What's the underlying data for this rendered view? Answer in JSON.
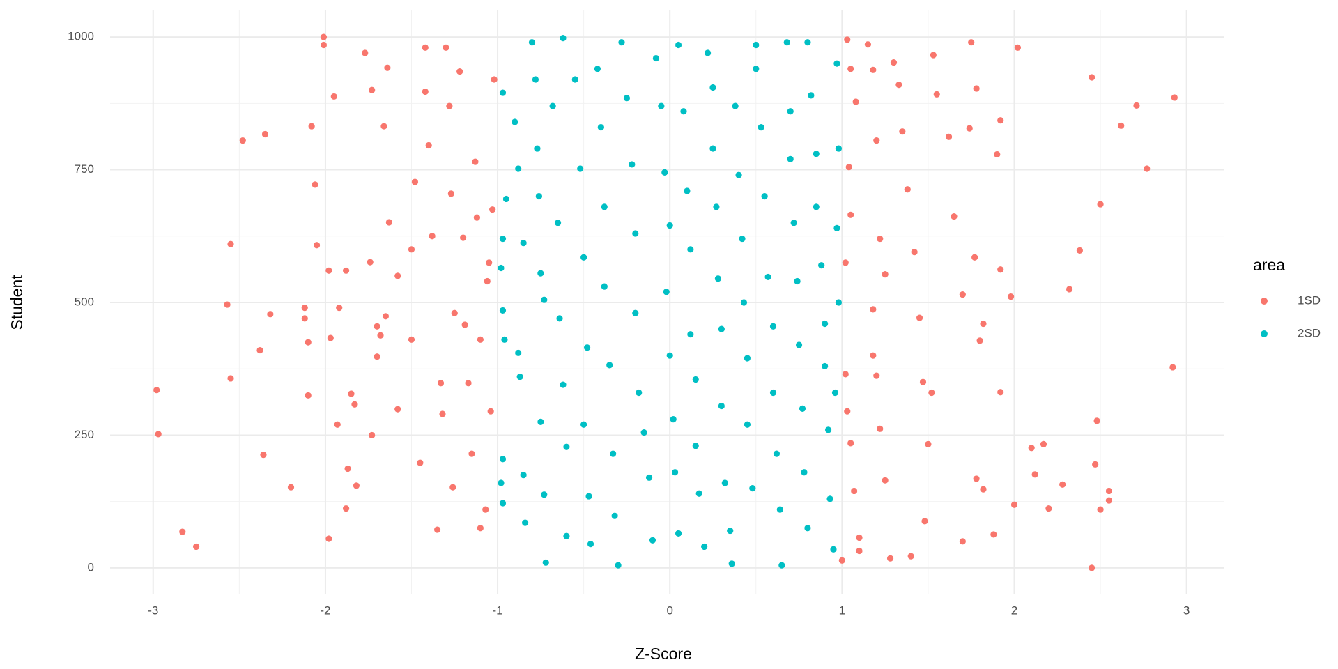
{
  "chart_data": {
    "type": "scatter",
    "x_label": "Z-Score",
    "y_label": "Student",
    "legend_title": "area",
    "legend_position": "right",
    "grid": true,
    "xlim": [
      -3.25,
      3.22
    ],
    "ylim": [
      -50,
      1050
    ],
    "xticks": [
      -3,
      -2,
      -1,
      0,
      1,
      2,
      3
    ],
    "yticks": [
      0,
      250,
      500,
      750,
      1000
    ],
    "series": [
      {
        "name": "1SD",
        "color": "#F8766D",
        "x": [
          -2.98,
          -2.97,
          -2.83,
          -2.75,
          -2.55,
          -2.57,
          -2.55,
          -2.48,
          -2.38,
          -2.36,
          -2.35,
          -2.32,
          -2.2,
          -2.12,
          -2.12,
          -2.1,
          -2.1,
          -2.08,
          -2.05,
          -2.06,
          -2.01,
          -2.01,
          -1.98,
          -1.98,
          -1.97,
          -1.95,
          -1.93,
          -1.92,
          -1.88,
          -1.87,
          -1.88,
          -1.85,
          -1.83,
          -1.82,
          -1.77,
          -1.73,
          -1.74,
          -1.73,
          -1.7,
          -1.7,
          -1.68,
          -1.66,
          -1.65,
          -1.64,
          -1.63,
          -1.58,
          -1.58,
          -1.5,
          -1.5,
          -1.48,
          -1.45,
          -1.42,
          -1.42,
          -1.4,
          -1.38,
          -1.35,
          -1.33,
          -1.32,
          -1.3,
          -1.28,
          -1.27,
          -1.26,
          -1.25,
          -1.22,
          -1.2,
          -1.19,
          -1.17,
          -1.15,
          -1.13,
          -1.12,
          -1.1,
          -1.1,
          -1.06,
          -1.05,
          -1.03,
          -1.02,
          -1.04,
          -1.07,
          1.03,
          1.05,
          1.08,
          1.04,
          1.05,
          1.02,
          1.02,
          1.03,
          1.05,
          1.07,
          1.1,
          1.1,
          1.0,
          1.15,
          1.18,
          1.2,
          1.22,
          1.25,
          1.18,
          1.18,
          1.2,
          1.22,
          1.25,
          1.28,
          1.3,
          1.33,
          1.35,
          1.38,
          1.42,
          1.45,
          1.47,
          1.5,
          1.48,
          1.52,
          1.53,
          1.55,
          1.62,
          1.65,
          1.7,
          1.74,
          1.75,
          1.78,
          1.8,
          1.82,
          1.77,
          1.78,
          1.82,
          1.88,
          1.9,
          1.92,
          1.92,
          1.92,
          1.98,
          2.0,
          2.02,
          2.1,
          2.12,
          2.17,
          2.2,
          2.28,
          2.32,
          2.38,
          2.45,
          2.47,
          2.48,
          2.5,
          2.5,
          2.55,
          2.55,
          2.62,
          2.71,
          2.77,
          2.93,
          2.92,
          2.45,
          1.7,
          1.4
        ],
        "values": [
          335,
          252,
          68,
          40,
          610,
          496,
          357,
          805,
          410,
          213,
          817,
          478,
          152,
          490,
          470,
          425,
          325,
          832,
          608,
          722,
          1000,
          985,
          560,
          55,
          433,
          888,
          270,
          490,
          112,
          187,
          560,
          328,
          308,
          155,
          970,
          900,
          576,
          250,
          455,
          398,
          438,
          832,
          474,
          942,
          651,
          550,
          299,
          600,
          430,
          727,
          198,
          980,
          897,
          796,
          625,
          72,
          348,
          290,
          980,
          870,
          705,
          152,
          480,
          935,
          622,
          458,
          348,
          215,
          765,
          660,
          430,
          75,
          540,
          575,
          675,
          920,
          295,
          110,
          995,
          940,
          878,
          755,
          665,
          575,
          365,
          295,
          235,
          145,
          57,
          32,
          14,
          986,
          938,
          805,
          620,
          553,
          487,
          400,
          362,
          262,
          165,
          18,
          952,
          910,
          822,
          713,
          595,
          471,
          350,
          233,
          88,
          330,
          966,
          892,
          812,
          662,
          515,
          828,
          990,
          903,
          428,
          460,
          585,
          168,
          148,
          63,
          779,
          843,
          562,
          331,
          511,
          119,
          980,
          226,
          176,
          233,
          112,
          157,
          525,
          598,
          924,
          195,
          277,
          110,
          685,
          127,
          145,
          833,
          871,
          752,
          886,
          378,
          0,
          50,
          22
        ]
      },
      {
        "name": "2SD",
        "color": "#00BFC4",
        "x": [
          -0.97,
          -0.95,
          -0.97,
          -0.98,
          -0.97,
          -0.96,
          -0.97,
          -0.98,
          -0.97,
          -0.9,
          -0.88,
          -0.85,
          -0.88,
          -0.87,
          -0.85,
          -0.84,
          -0.8,
          -0.78,
          -0.77,
          -0.76,
          -0.75,
          -0.73,
          -0.75,
          -0.73,
          -0.72,
          -0.68,
          -0.65,
          -0.64,
          -0.62,
          -0.6,
          -0.6,
          -0.62,
          -0.55,
          -0.52,
          -0.5,
          -0.48,
          -0.5,
          -0.47,
          -0.46,
          -0.42,
          -0.4,
          -0.38,
          -0.38,
          -0.35,
          -0.33,
          -0.32,
          -0.3,
          -0.28,
          -0.25,
          -0.22,
          -0.2,
          -0.2,
          -0.18,
          -0.15,
          -0.12,
          -0.1,
          -0.08,
          -0.05,
          -0.03,
          0.0,
          -0.02,
          0.0,
          0.02,
          0.03,
          0.05,
          0.05,
          0.08,
          0.1,
          0.12,
          0.12,
          0.15,
          0.15,
          0.17,
          0.2,
          0.22,
          0.25,
          0.25,
          0.27,
          0.28,
          0.3,
          0.3,
          0.32,
          0.35,
          0.36,
          0.38,
          0.4,
          0.42,
          0.43,
          0.45,
          0.45,
          0.48,
          0.5,
          0.5,
          0.53,
          0.55,
          0.57,
          0.6,
          0.6,
          0.62,
          0.64,
          0.65,
          0.68,
          0.7,
          0.7,
          0.72,
          0.74,
          0.75,
          0.77,
          0.78,
          0.8,
          0.8,
          0.82,
          0.85,
          0.85,
          0.88,
          0.9,
          0.9,
          0.92,
          0.93,
          0.95,
          0.97,
          0.98,
          0.97,
          0.98,
          0.96
        ],
        "values": [
          895,
          695,
          620,
          565,
          485,
          430,
          205,
          160,
          122,
          840,
          752,
          612,
          405,
          360,
          175,
          85,
          990,
          920,
          790,
          700,
          555,
          505,
          275,
          138,
          10,
          870,
          650,
          470,
          345,
          228,
          60,
          998,
          920,
          752,
          585,
          415,
          270,
          135,
          45,
          940,
          830,
          680,
          530,
          382,
          215,
          98,
          5,
          990,
          885,
          760,
          630,
          480,
          330,
          255,
          170,
          52,
          960,
          870,
          745,
          645,
          520,
          400,
          280,
          180,
          65,
          985,
          860,
          710,
          600,
          440,
          355,
          230,
          140,
          40,
          970,
          905,
          790,
          680,
          545,
          450,
          305,
          160,
          70,
          8,
          870,
          740,
          620,
          500,
          395,
          270,
          150,
          985,
          940,
          830,
          700,
          548,
          455,
          330,
          215,
          110,
          5,
          990,
          860,
          770,
          650,
          540,
          420,
          300,
          180,
          75,
          990,
          890,
          780,
          680,
          570,
          460,
          380,
          260,
          130,
          35,
          950,
          790,
          640,
          500,
          330
        ]
      }
    ]
  }
}
